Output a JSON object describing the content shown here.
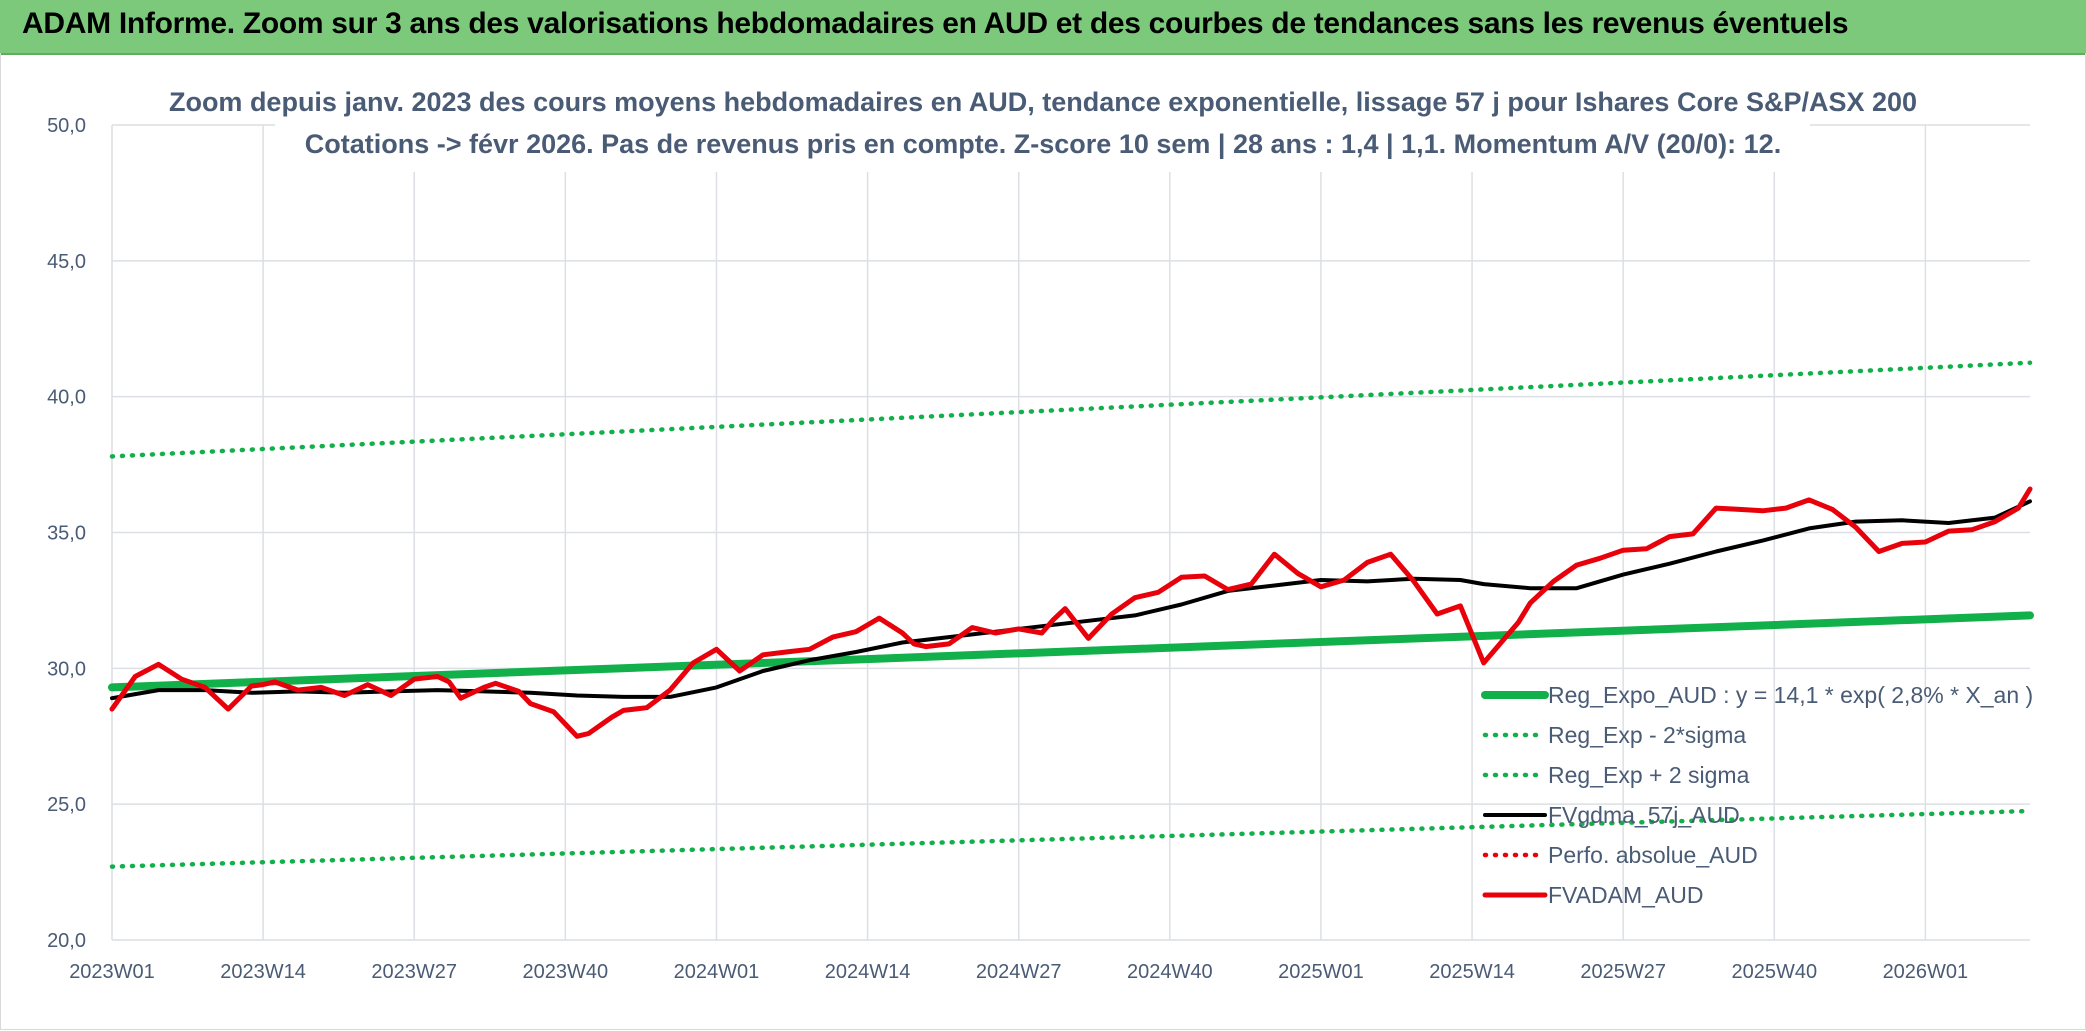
{
  "banner": {
    "title": "ADAM Informe. Zoom sur 3 ans des valorisations hebdomadaires en AUD et des courbes de tendances sans les revenus éventuels"
  },
  "colors": {
    "banner_bg": "#7dc97c",
    "trend_green": "#12b04a",
    "red": "#e8000b",
    "black": "#000000",
    "text": "#4a5b75",
    "grid": "#dcdfe3"
  },
  "chart_data": {
    "type": "line",
    "title": [
      "Zoom depuis janv. 2023 des cours moyens hebdomadaires en AUD, tendance exponentielle, lissage 57 j pour Ishares Core S&P/ASX 200",
      "Cotations -> févr 2026. Pas de revenus pris en compte. Z-score 10 sem | 28 ans : 1,4 | 1,1. Momentum A/V (20/0): 12."
    ],
    "xlabel": "",
    "ylabel": "",
    "ylim": [
      20,
      50
    ],
    "y_ticks": [
      "20,0",
      "25,0",
      "30,0",
      "35,0",
      "40,0",
      "45,0",
      "50,0"
    ],
    "x_ticks": [
      "2023W01",
      "2023W14",
      "2023W27",
      "2023W40",
      "2024W01",
      "2024W14",
      "2024W27",
      "2024W40",
      "2025W01",
      "2025W14",
      "2025W27",
      "2025W40",
      "2026W01"
    ],
    "x_range_weeks": [
      0,
      165
    ],
    "grid": true,
    "legend_position": "bottom-right",
    "series": [
      {
        "name": "Reg_Expo_AUD : y = 14,1 * exp( 2,8% *  X_an )",
        "color": "#12b04a",
        "style": "solid-thick",
        "x": [
          0,
          165
        ],
        "values": [
          29.3,
          31.95
        ]
      },
      {
        "name": "Reg_Exp - 2*sigma",
        "color": "#12b04a",
        "style": "dotted",
        "x": [
          0,
          165
        ],
        "values": [
          22.7,
          24.75
        ]
      },
      {
        "name": "Reg_Exp + 2 sigma",
        "color": "#12b04a",
        "style": "dotted",
        "x": [
          0,
          165
        ],
        "values": [
          37.8,
          41.25
        ]
      },
      {
        "name": "FVgdma_57j_AUD",
        "color": "#000000",
        "style": "solid",
        "x": [
          0,
          4,
          8,
          12,
          16,
          20,
          24,
          28,
          32,
          36,
          40,
          44,
          48,
          52,
          56,
          60,
          64,
          68,
          72,
          76,
          80,
          84,
          88,
          92,
          96,
          100,
          104,
          108,
          112,
          116,
          118,
          122,
          126,
          130,
          134,
          138,
          142,
          146,
          150,
          154,
          158,
          162,
          165
        ],
        "values": [
          28.9,
          29.2,
          29.2,
          29.1,
          29.15,
          29.1,
          29.15,
          29.2,
          29.15,
          29.1,
          29.0,
          28.95,
          28.95,
          29.3,
          29.9,
          30.3,
          30.6,
          30.95,
          31.15,
          31.35,
          31.55,
          31.75,
          31.95,
          32.35,
          32.85,
          33.05,
          33.25,
          33.2,
          33.3,
          33.25,
          33.1,
          32.95,
          32.95,
          33.45,
          33.85,
          34.3,
          34.7,
          35.15,
          35.4,
          35.45,
          35.35,
          35.55,
          36.15
        ]
      },
      {
        "name": "Perfo. absolue_AUD",
        "color": "#e8000b",
        "style": "dotted",
        "x": [],
        "values": []
      },
      {
        "name": "FVADAM_AUD",
        "color": "#e8000b",
        "style": "solid-thick",
        "x": [
          0,
          2,
          4,
          6,
          8,
          10,
          12,
          13,
          14,
          16,
          18,
          20,
          22,
          24,
          26,
          27,
          28,
          29,
          30,
          32,
          33,
          35,
          36,
          38,
          40,
          41,
          43,
          44,
          46,
          48,
          50,
          52,
          54,
          56,
          58,
          60,
          62,
          64,
          66,
          68,
          69,
          70,
          72,
          74,
          76,
          78,
          80,
          81,
          82,
          84,
          86,
          88,
          90,
          92,
          94,
          96,
          98,
          100,
          102,
          104,
          106,
          108,
          110,
          112,
          114,
          116,
          118,
          120,
          121,
          122,
          124,
          126,
          128,
          130,
          132,
          134,
          136,
          138,
          140,
          142,
          144,
          146,
          148,
          150,
          152,
          154,
          156,
          158,
          160,
          162,
          164,
          165
        ],
        "values": [
          28.5,
          29.7,
          30.15,
          29.6,
          29.3,
          28.5,
          29.35,
          29.4,
          29.5,
          29.2,
          29.3,
          29.0,
          29.4,
          29.0,
          29.6,
          29.65,
          29.7,
          29.5,
          28.9,
          29.3,
          29.45,
          29.15,
          28.7,
          28.4,
          27.5,
          27.6,
          28.2,
          28.45,
          28.55,
          29.2,
          30.2,
          30.7,
          29.9,
          30.5,
          30.6,
          30.7,
          31.15,
          31.35,
          31.85,
          31.3,
          30.9,
          30.8,
          30.9,
          31.5,
          31.3,
          31.45,
          31.3,
          31.8,
          32.2,
          31.1,
          32.0,
          32.6,
          32.8,
          33.35,
          33.4,
          32.9,
          33.1,
          34.2,
          33.5,
          33.0,
          33.25,
          33.9,
          34.2,
          33.2,
          32.0,
          32.3,
          30.2,
          31.2,
          31.7,
          32.4,
          33.2,
          33.8,
          34.05,
          34.35,
          34.4,
          34.85,
          34.95,
          35.9,
          35.85,
          35.8,
          35.9,
          36.2,
          35.85,
          35.2,
          34.3,
          34.6,
          34.65,
          35.05,
          35.1,
          35.4,
          35.9,
          36.6
        ]
      }
    ]
  }
}
